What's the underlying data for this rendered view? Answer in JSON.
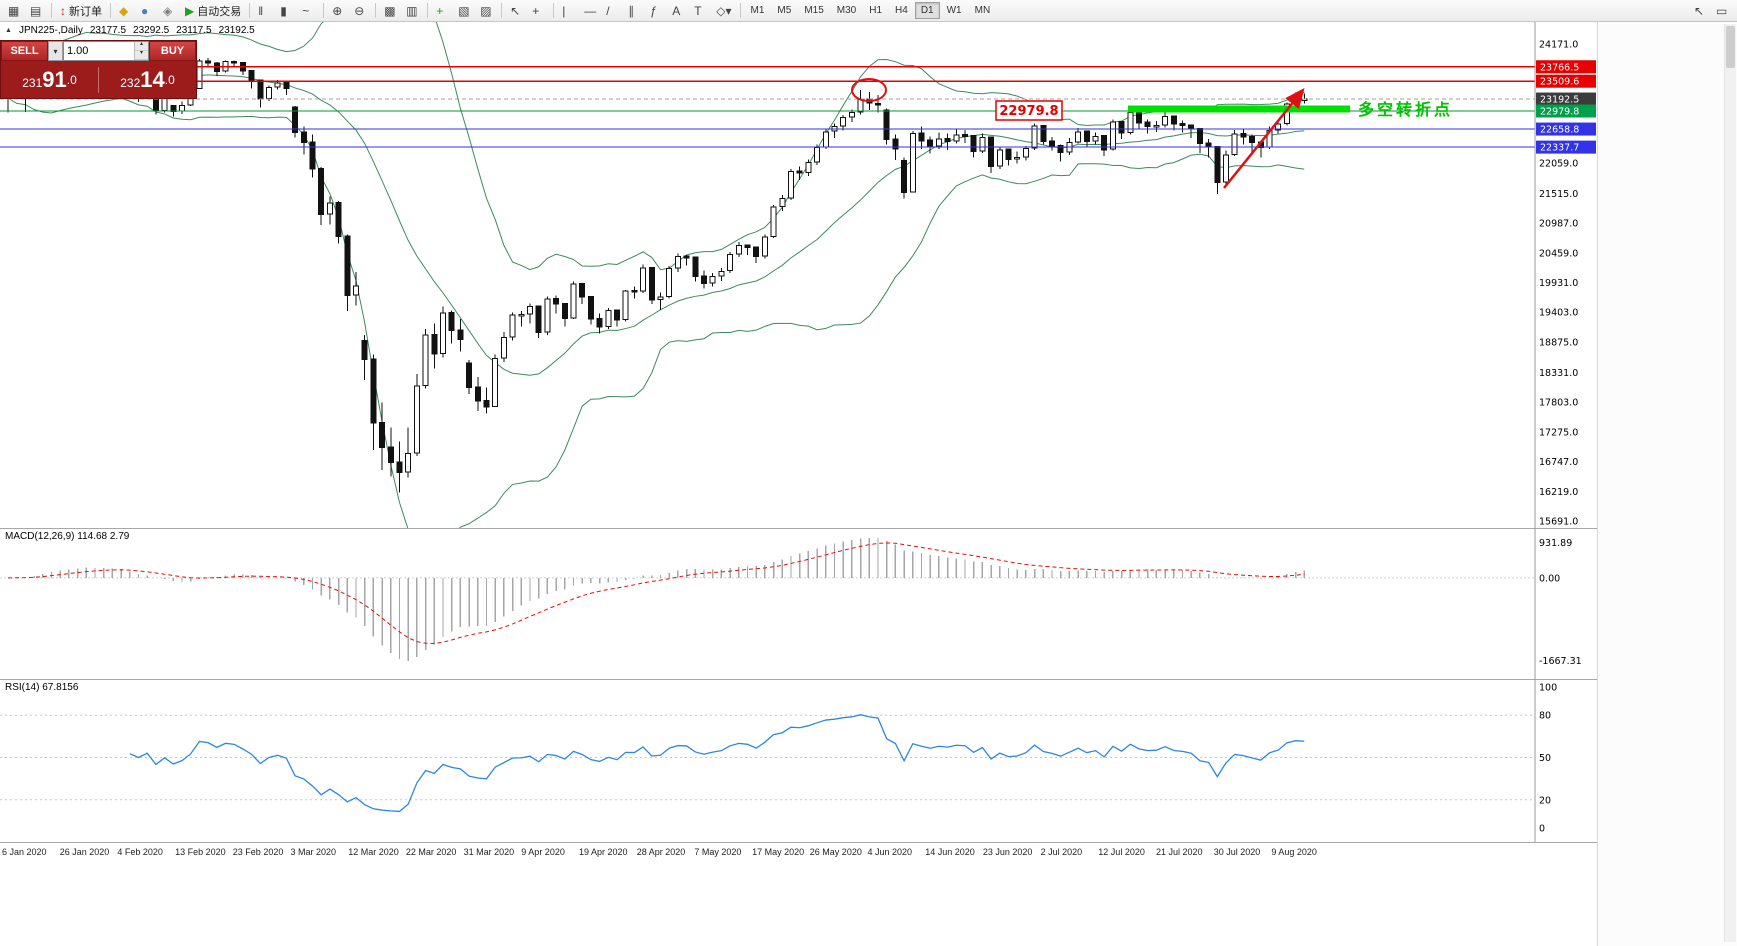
{
  "toolbar": {
    "items": [
      {
        "name": "new-chart-button",
        "glyph": "▦"
      },
      {
        "name": "profiles-button",
        "glyph": "▤"
      },
      {
        "type": "sep"
      },
      {
        "name": "new-order-button",
        "glyph": "↕",
        "glyph_color": "#c03030",
        "label": "新订单"
      },
      {
        "type": "sep"
      },
      {
        "name": "metaeditor-button",
        "glyph": "◆",
        "glyph_color": "#d6a418"
      },
      {
        "name": "market-watch-button",
        "glyph": "●",
        "glyph_color": "#4a7ebb"
      },
      {
        "name": "signals-button",
        "glyph": "◈",
        "glyph_color": "#7a7a7a"
      },
      {
        "name": "autotrading-button",
        "glyph": "▶",
        "glyph_color": "#1ba31b",
        "label": "自动交易"
      },
      {
        "type": "sep"
      },
      {
        "name": "bar-chart-button",
        "glyph": "‖"
      },
      {
        "name": "candlestick-chart-button",
        "glyph": "▮"
      },
      {
        "name": "line-chart-button",
        "glyph": "~"
      },
      {
        "type": "sep"
      },
      {
        "name": "zoom-in-button",
        "glyph": "⊕"
      },
      {
        "name": "zoom-out-button",
        "glyph": "⊖"
      },
      {
        "type": "sep"
      },
      {
        "name": "tile-windows-button",
        "glyph": "▩"
      },
      {
        "name": "arrange-windows-button",
        "glyph": "▥"
      },
      {
        "type": "sep"
      },
      {
        "name": "indicators-button",
        "glyph": "+",
        "glyph_color": "#1ba31b"
      },
      {
        "name": "periods-button",
        "glyph": "▧"
      },
      {
        "name": "templates-button",
        "glyph": "▨"
      },
      {
        "type": "sep"
      },
      {
        "name": "cursor-button",
        "glyph": "↖"
      },
      {
        "name": "crosshair-button",
        "glyph": "+"
      },
      {
        "type": "sep"
      },
      {
        "name": "vertical-line-button",
        "glyph": "|"
      },
      {
        "name": "horizontal-line-button",
        "glyph": "—"
      },
      {
        "name": "trendline-button",
        "glyph": "/"
      },
      {
        "name": "channel-button",
        "glyph": "∥"
      },
      {
        "name": "fibonacci-button",
        "glyph": "ƒ"
      },
      {
        "name": "text-button",
        "glyph": "A"
      },
      {
        "name": "text-label-button",
        "glyph": "T"
      },
      {
        "name": "shapes-button",
        "glyph": "◇▾"
      },
      {
        "type": "sep"
      },
      {
        "type": "tf",
        "name": "timeframe-m1-button",
        "label": "M1"
      },
      {
        "type": "tf",
        "name": "timeframe-m5-button",
        "label": "M5"
      },
      {
        "type": "tf",
        "name": "timeframe-m15-button",
        "label": "M15"
      },
      {
        "type": "tf",
        "name": "timeframe-m30-button",
        "label": "M30"
      },
      {
        "type": "tf",
        "name": "timeframe-h1-button",
        "label": "H1"
      },
      {
        "type": "tf",
        "name": "timeframe-h4-button",
        "label": "H4"
      },
      {
        "type": "tf",
        "name": "timeframe-d1-button",
        "label": "D1",
        "active": true
      },
      {
        "type": "tf",
        "name": "timeframe-w1-button",
        "label": "W1"
      },
      {
        "type": "tf",
        "name": "timeframe-mn-button",
        "label": "MN"
      },
      {
        "name": "pointer-mode-button",
        "glyph": "↖",
        "right": true
      },
      {
        "name": "pan-mode-button",
        "glyph": "▭"
      }
    ]
  },
  "symbol_info": {
    "expander": "▲",
    "symbol": "JPN225-,Daily",
    "open": "23177.5",
    "high": "23292.5",
    "low": "23117.5",
    "close": "23192.5"
  },
  "trade_panel": {
    "sell_label": "SELL",
    "buy_label": "BUY",
    "lot": "1.00",
    "sell_price": "23191.0",
    "buy_price": "23214.0",
    "dropdown_glyph": "▾",
    "stepper_up": "▴",
    "stepper_down": "▾"
  },
  "chart_data": {
    "type": "candlestick",
    "symbol": "JPN225",
    "timeframe": "Daily",
    "x_ticks": [
      "6 Jan 2020",
      "26 Jan 2020",
      "4 Feb 2020",
      "13 Feb 2020",
      "23 Feb 2020",
      "3 Mar 2020",
      "12 Mar 2020",
      "22 Mar 2020",
      "31 Mar 2020",
      "9 Apr 2020",
      "19 Apr 2020",
      "28 Apr 2020",
      "7 May 2020",
      "17 May 2020",
      "26 May 2020",
      "4 Jun 2020",
      "14 Jun 2020",
      "23 Jun 2020",
      "2 Jul 2020",
      "12 Jul 2020",
      "21 Jul 2020",
      "30 Jul 2020",
      "9 Aug 2020"
    ],
    "y_ticks": [
      24171.0,
      22059.0,
      21515.0,
      20987.0,
      20459.0,
      19931.0,
      19403.0,
      18875.0,
      18331.0,
      17803.0,
      17275.0,
      16747.0,
      16219.0,
      15691.0
    ],
    "levels": [
      {
        "value": 23766.5,
        "label": "23766.5",
        "color": "#e60000",
        "badge": "#e60000"
      },
      {
        "value": 23509.6,
        "label": "23509.6",
        "color": "#e60000",
        "badge": "#e60000"
      },
      {
        "value": 23192.5,
        "label": "23192.5",
        "color": "#a0a0a0",
        "style": "dashed",
        "badge": "#3c3c3c"
      },
      {
        "value": 22979.8,
        "label": "22979.8",
        "color": "#00953a",
        "badge": "#00a04a"
      },
      {
        "value": 22658.8,
        "label": "22658.8",
        "color": "#3232e6",
        "badge": "#3232e6"
      },
      {
        "value": 22337.7,
        "label": "22337.7",
        "color": "#3232e6",
        "badge": "#3232e6"
      }
    ],
    "indicators": {
      "bollinger": {
        "period": 20,
        "deviation": 2,
        "color": "#3d8b5f"
      },
      "macd": {
        "label": "MACD(12,26,9) 114.68 2.79",
        "axis_labels": [
          "931.89",
          "0.00",
          "-1667.31"
        ],
        "hist_color": "#a6a6a6",
        "signal_color": "#e01010"
      },
      "rsi": {
        "label": "RSI(14) 67.8156",
        "color": "#2d87e0",
        "levels": [
          80,
          50,
          20
        ],
        "axis_labels": [
          [
            100,
            "100"
          ],
          [
            80,
            "80"
          ],
          [
            50,
            "50"
          ],
          [
            20,
            "20"
          ],
          [
            0,
            "0"
          ]
        ]
      }
    },
    "annotations": {
      "price_label": "22979.8",
      "text": "多空转折点",
      "text_color": "#00c300",
      "support_line_color": "#00e000",
      "arrow_color": "#e01010"
    },
    "candles": [
      [
        23300,
        23430,
        22950,
        23210
      ],
      [
        23220,
        23430,
        23180,
        23400
      ],
      [
        23400,
        23420,
        22960,
        23210
      ],
      [
        23260,
        23680,
        23250,
        23650
      ],
      [
        23660,
        23880,
        23640,
        23850
      ],
      [
        23860,
        24050,
        23830,
        24000
      ],
      [
        24000,
        24040,
        23820,
        23900
      ],
      [
        23910,
        23990,
        23850,
        23960
      ],
      [
        23970,
        24080,
        23940,
        24040
      ],
      [
        24050,
        24120,
        23990,
        24080
      ],
      [
        24080,
        24090,
        23810,
        23870
      ],
      [
        23880,
        23970,
        23840,
        23930
      ],
      [
        23930,
        23940,
        23720,
        23790
      ],
      [
        23800,
        23880,
        23760,
        23830
      ],
      [
        23740,
        23750,
        23280,
        23340
      ],
      [
        23350,
        23410,
        23140,
        23220
      ],
      [
        23230,
        23400,
        23200,
        23360
      ],
      [
        23370,
        23380,
        22920,
        22980
      ],
      [
        22990,
        23250,
        22950,
        23200
      ],
      [
        23080,
        23090,
        22880,
        22970
      ],
      [
        22980,
        23150,
        22930,
        23080
      ],
      [
        23090,
        23360,
        23070,
        23320
      ],
      [
        23380,
        23900,
        23370,
        23870
      ],
      [
        23870,
        23920,
        23770,
        23830
      ],
      [
        23830,
        23850,
        23600,
        23680
      ],
      [
        23690,
        23880,
        23660,
        23860
      ],
      [
        23860,
        23880,
        23760,
        23830
      ],
      [
        23840,
        23850,
        23620,
        23690
      ],
      [
        23700,
        23710,
        23380,
        23520
      ],
      [
        23530,
        23540,
        23040,
        23190
      ],
      [
        23200,
        23430,
        23160,
        23400
      ],
      [
        23410,
        23530,
        23360,
        23480
      ],
      [
        23490,
        23500,
        23260,
        23380
      ],
      [
        23050,
        23070,
        22510,
        22600
      ],
      [
        22610,
        22700,
        22210,
        22420
      ],
      [
        22430,
        22560,
        21800,
        21950
      ],
      [
        21960,
        21980,
        20950,
        21140
      ],
      [
        21150,
        21460,
        20960,
        21340
      ],
      [
        21350,
        21380,
        20620,
        20750
      ],
      [
        20760,
        20780,
        19420,
        19700
      ],
      [
        19710,
        20120,
        19520,
        19870
      ],
      [
        18900,
        19000,
        18200,
        18560
      ],
      [
        18570,
        18650,
        16950,
        17430
      ],
      [
        17440,
        17800,
        16600,
        17000
      ],
      [
        17010,
        17350,
        16480,
        16730
      ],
      [
        16740,
        17100,
        16200,
        16550
      ],
      [
        16560,
        17350,
        16460,
        16890
      ],
      [
        16900,
        18300,
        16850,
        18090
      ],
      [
        18100,
        19100,
        18050,
        19000
      ],
      [
        19010,
        19200,
        18400,
        18660
      ],
      [
        18670,
        19500,
        18600,
        19390
      ],
      [
        19400,
        19430,
        18850,
        19080
      ],
      [
        19090,
        19280,
        18700,
        18920
      ],
      [
        18500,
        18550,
        17950,
        18060
      ],
      [
        18070,
        18250,
        17650,
        17820
      ],
      [
        17830,
        18060,
        17600,
        17720
      ],
      [
        17730,
        18650,
        17720,
        18580
      ],
      [
        18590,
        19050,
        18520,
        18950
      ],
      [
        18960,
        19400,
        18900,
        19350
      ],
      [
        19360,
        19420,
        19150,
        19360
      ],
      [
        19370,
        19560,
        19200,
        19500
      ],
      [
        19510,
        19520,
        18940,
        19040
      ],
      [
        19050,
        19680,
        19000,
        19640
      ],
      [
        19650,
        19700,
        19380,
        19550
      ],
      [
        19560,
        19570,
        19150,
        19290
      ],
      [
        19300,
        19950,
        19280,
        19900
      ],
      [
        19910,
        19920,
        19550,
        19670
      ],
      [
        19680,
        19690,
        19180,
        19280
      ],
      [
        19290,
        19380,
        19020,
        19140
      ],
      [
        19150,
        19480,
        19100,
        19430
      ],
      [
        19440,
        19450,
        19150,
        19260
      ],
      [
        19270,
        19800,
        19240,
        19780
      ],
      [
        19790,
        19860,
        19650,
        19770
      ],
      [
        19780,
        20250,
        19740,
        20190
      ],
      [
        20200,
        20210,
        19550,
        19620
      ],
      [
        19630,
        19750,
        19440,
        19670
      ],
      [
        19680,
        20220,
        19650,
        20180
      ],
      [
        20190,
        20450,
        20120,
        20390
      ],
      [
        20400,
        20420,
        20230,
        20370
      ],
      [
        20380,
        20390,
        19950,
        20040
      ],
      [
        20050,
        20140,
        19820,
        19910
      ],
      [
        19920,
        20100,
        19860,
        20040
      ],
      [
        20050,
        20190,
        19960,
        20130
      ],
      [
        20140,
        20470,
        20100,
        20430
      ],
      [
        20440,
        20650,
        20380,
        20590
      ],
      [
        20600,
        20610,
        20420,
        20550
      ],
      [
        20560,
        20570,
        20280,
        20390
      ],
      [
        20400,
        20780,
        20360,
        20740
      ],
      [
        20750,
        21310,
        20720,
        21270
      ],
      [
        21280,
        21490,
        21200,
        21420
      ],
      [
        21430,
        21950,
        21400,
        21900
      ],
      [
        21910,
        21990,
        21750,
        21880
      ],
      [
        21890,
        22120,
        21820,
        22060
      ],
      [
        22070,
        22380,
        22020,
        22330
      ],
      [
        22340,
        22660,
        22300,
        22610
      ],
      [
        22620,
        22760,
        22500,
        22700
      ],
      [
        22710,
        22910,
        22630,
        22860
      ],
      [
        22870,
        23010,
        22780,
        22950
      ],
      [
        22960,
        23350,
        22920,
        23180
      ],
      [
        23190,
        23320,
        23000,
        23120
      ],
      [
        23110,
        23260,
        22950,
        23090
      ],
      [
        23000,
        23020,
        22380,
        22470
      ],
      [
        22480,
        22560,
        22110,
        22300
      ],
      [
        22100,
        22150,
        21420,
        21530
      ],
      [
        21540,
        22620,
        21530,
        22580
      ],
      [
        22590,
        22700,
        22300,
        22450
      ],
      [
        22460,
        22530,
        22220,
        22350
      ],
      [
        22360,
        22600,
        22300,
        22480
      ],
      [
        22490,
        22580,
        22290,
        22440
      ],
      [
        22450,
        22670,
        22400,
        22550
      ],
      [
        22560,
        22640,
        22410,
        22530
      ],
      [
        22540,
        22550,
        22150,
        22260
      ],
      [
        22270,
        22580,
        22230,
        22510
      ],
      [
        22520,
        22530,
        21880,
        21990
      ],
      [
        22000,
        22350,
        21950,
        22290
      ],
      [
        22300,
        22310,
        22010,
        22120
      ],
      [
        22130,
        22260,
        22050,
        22150
      ],
      [
        22160,
        22360,
        22100,
        22310
      ],
      [
        22320,
        22760,
        22290,
        22710
      ],
      [
        22720,
        22730,
        22380,
        22440
      ],
      [
        22450,
        22520,
        22280,
        22360
      ],
      [
        22370,
        22380,
        22080,
        22240
      ],
      [
        22250,
        22500,
        22200,
        22420
      ],
      [
        22430,
        22680,
        22400,
        22610
      ],
      [
        22620,
        22630,
        22350,
        22440
      ],
      [
        22450,
        22600,
        22380,
        22530
      ],
      [
        22540,
        22550,
        22180,
        22290
      ],
      [
        22300,
        22830,
        22280,
        22780
      ],
      [
        22790,
        22800,
        22480,
        22590
      ],
      [
        22600,
        23000,
        22560,
        22950
      ],
      [
        22960,
        22970,
        22650,
        22770
      ],
      [
        22780,
        22830,
        22580,
        22700
      ],
      [
        22710,
        22800,
        22610,
        22720
      ],
      [
        22730,
        22950,
        22690,
        22880
      ],
      [
        22890,
        22900,
        22630,
        22750
      ],
      [
        22760,
        22810,
        22600,
        22720
      ],
      [
        22730,
        22740,
        22500,
        22660
      ],
      [
        22670,
        22680,
        22230,
        22400
      ],
      [
        22410,
        22480,
        22150,
        22340
      ],
      [
        22350,
        22360,
        21500,
        21710
      ],
      [
        21720,
        22280,
        21650,
        22200
      ],
      [
        22210,
        22640,
        22180,
        22570
      ],
      [
        22580,
        22660,
        22380,
        22520
      ],
      [
        22530,
        22560,
        22230,
        22420
      ],
      [
        22430,
        22440,
        22150,
        22330
      ],
      [
        22340,
        22700,
        22300,
        22630
      ],
      [
        22640,
        22810,
        22580,
        22750
      ],
      [
        22760,
        23130,
        22720,
        23100
      ],
      [
        23110,
        23310,
        23060,
        23210
      ],
      [
        23177.5,
        23292.5,
        23117.5,
        23192.5
      ]
    ]
  }
}
